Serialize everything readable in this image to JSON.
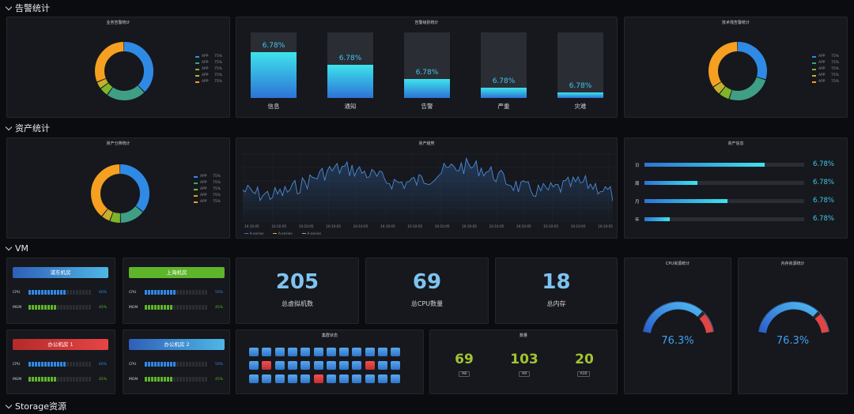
{
  "sections": {
    "alarm": "告警统计",
    "assets": "资产统计",
    "vm": "VM",
    "storage": "Storage资源"
  },
  "colors": {
    "blue": "#2f8ae6",
    "teal": "#3f9e86",
    "green": "#7fb52a",
    "yellow": "#c7b02a",
    "orange": "#f5a020",
    "cyan": "#37c7e6",
    "red": "#e04545"
  },
  "biz_alarm": {
    "title": "业务告警统计",
    "legend": [
      {
        "label": "APP",
        "pct": "75%"
      },
      {
        "label": "APP",
        "pct": "75%"
      },
      {
        "label": "APP",
        "pct": "75%"
      },
      {
        "label": "APP",
        "pct": "75%"
      },
      {
        "label": "APP",
        "pct": "75%"
      }
    ],
    "donut": [
      38,
      22,
      5,
      4,
      31
    ]
  },
  "alarm_level": {
    "title": "告警级别统计",
    "bars": [
      {
        "label": "信息",
        "value_text": "6.78%",
        "fill": 0.7
      },
      {
        "label": "通知",
        "value_text": "6.78%",
        "fill": 0.5
      },
      {
        "label": "告警",
        "value_text": "6.78%",
        "fill": 0.29
      },
      {
        "label": "严重",
        "value_text": "6.78%",
        "fill": 0.16
      },
      {
        "label": "灾难",
        "value_text": "6.78%",
        "fill": 0.08
      }
    ]
  },
  "stack_alarm": {
    "title": "技术栈告警统计",
    "legend": [
      {
        "label": "APP",
        "pct": "75%"
      },
      {
        "label": "APP",
        "pct": "75%"
      },
      {
        "label": "APP",
        "pct": "75%"
      },
      {
        "label": "APP",
        "pct": "75%"
      },
      {
        "label": "APP",
        "pct": "75%"
      }
    ],
    "donut": [
      30,
      25,
      6,
      5,
      34
    ]
  },
  "asset_class": {
    "title": "资产分类统计",
    "legend": [
      {
        "label": "APP",
        "pct": "75%"
      },
      {
        "label": "APP",
        "pct": "75%"
      },
      {
        "label": "APP",
        "pct": "75%"
      },
      {
        "label": "APP",
        "pct": "75%"
      },
      {
        "label": "APP",
        "pct": "75%"
      }
    ],
    "donut": [
      36,
      14,
      6,
      5,
      39
    ]
  },
  "asset_trend": {
    "title": "资产趋势",
    "xticks": [
      "10:10:05",
      "10:10:05",
      "10:10:05",
      "10:10:05",
      "10:10:05",
      "10:10:05",
      "10:10:05",
      "10:10:05",
      "10:10:05",
      "10:10:05",
      "10:10:05",
      "10:10:05",
      "10:10:05",
      "10:10:05"
    ],
    "legend": [
      "A-series",
      "A-series",
      "A-series"
    ]
  },
  "asset_change": {
    "title": "资产信息",
    "rows": [
      {
        "label": "日",
        "value_text": "6.78%",
        "fill": 0.75
      },
      {
        "label": "周",
        "value_text": "6.78%",
        "fill": 0.33
      },
      {
        "label": "月",
        "value_text": "6.78%",
        "fill": 0.52
      },
      {
        "label": "年",
        "value_text": "6.78%",
        "fill": 0.16
      }
    ]
  },
  "rooms": [
    {
      "name": "浦东机房",
      "cpu_label": "CPU",
      "cpu": 0.6,
      "cpu_text": "60%",
      "mem_label": "MGM",
      "mem": 0.45,
      "mem_text": "45%"
    },
    {
      "name": "上海机房",
      "cpu_label": "CPU",
      "cpu": 0.5,
      "cpu_text": "50%",
      "mem_label": "MGM",
      "mem": 0.45,
      "mem_text": "45%"
    },
    {
      "name": "办公机房 1",
      "cpu_label": "CPU",
      "cpu": 0.6,
      "cpu_text": "60%",
      "mem_label": "MGM",
      "mem": 0.45,
      "mem_text": "45%"
    },
    {
      "name": "办公机房 2",
      "cpu_label": "CPU",
      "cpu": 0.5,
      "cpu_text": "50%",
      "mem_label": "MGM",
      "mem": 0.45,
      "mem_text": "45%"
    }
  ],
  "stats": [
    {
      "value": "205",
      "label": "总虚拟机数"
    },
    {
      "value": "69",
      "label": "总CPU数量"
    },
    {
      "value": "18",
      "label": "总内存"
    }
  ],
  "cluster": {
    "title": "集群状态",
    "rows": [
      [
        "ok",
        "ok",
        "ok",
        "ok",
        "ok",
        "ok",
        "ok",
        "ok",
        "ok",
        "ok",
        "ok",
        "ok"
      ],
      [
        "ok",
        "err",
        "ok",
        "ok",
        "ok",
        "ok",
        "ok",
        "ok",
        "ok",
        "err",
        "ok",
        "ok"
      ],
      [
        "ok",
        "ok",
        "ok",
        "ok",
        "ok",
        "err",
        "ok",
        "ok",
        "ok",
        "ok",
        "ok",
        "ok"
      ]
    ]
  },
  "count": {
    "title": "数量",
    "items": [
      {
        "value": "69",
        "tag": "A8"
      },
      {
        "value": "103",
        "tag": "A9"
      },
      {
        "value": "20",
        "tag": "A10"
      }
    ]
  },
  "cpu_gauge": {
    "title": "CPU资源统计",
    "value": 76.3,
    "text": "76.3%"
  },
  "mem_gauge": {
    "title": "内存资源统计",
    "value": 76.3,
    "text": "76.3%"
  }
}
